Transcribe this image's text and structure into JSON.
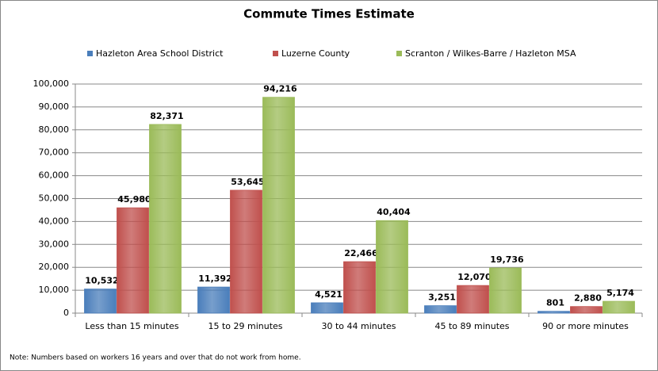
{
  "chart_data": {
    "type": "bar",
    "title": "Commute Times Estimate",
    "categories": [
      "Less than 15 minutes",
      "15 to 29 minutes",
      "30 to 44 minutes",
      "45 to 89 minutes",
      "90 or more minutes"
    ],
    "series": [
      {
        "name": "Hazleton Area School District",
        "color": "#4a7ebb",
        "values": [
          10532,
          11392,
          4521,
          3251,
          801
        ],
        "value_labels": [
          "10,532",
          "11,392",
          "4,521",
          "3,251",
          "801"
        ]
      },
      {
        "name": "Luzerne County",
        "color": "#c0504d",
        "values": [
          45980,
          53645,
          22466,
          12070,
          2880
        ],
        "value_labels": [
          "45,980",
          "53,645",
          "22,466",
          "12,070",
          "2,880"
        ]
      },
      {
        "name": "Scranton / Wilkes-Barre / Hazleton MSA",
        "color": "#9bbb59",
        "values": [
          82371,
          94216,
          40404,
          19736,
          5174
        ],
        "value_labels": [
          "82,371",
          "94,216",
          "40,404",
          "19,736",
          "5,174"
        ]
      }
    ],
    "ylim": [
      0,
      100000
    ],
    "yticks": [
      0,
      {
        "value": 10000,
        "label": "10,000"
      },
      {
        "value": 20000,
        "label": "20,000"
      },
      {
        "value": 30000,
        "label": "30,000"
      },
      {
        "value": 40000,
        "label": "40,000"
      },
      {
        "value": 50000,
        "label": "50,000"
      },
      {
        "value": 60000,
        "label": "60,000"
      },
      {
        "value": 70000,
        "label": "70,000"
      },
      {
        "value": 80000,
        "label": "80,000"
      },
      {
        "value": 90000,
        "label": "90,000"
      },
      {
        "value": 100000,
        "label": "100,000"
      }
    ],
    "grid": true,
    "legend": "top",
    "note": "Note: Numbers based on workers 16 years and over that do not work from home."
  }
}
